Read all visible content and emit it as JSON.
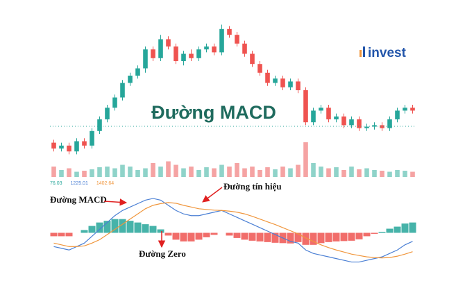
{
  "chart_data": {
    "type": "candlestick",
    "title": "Đường MACD",
    "watermark": "invest",
    "price": {
      "ylim": [
        0,
        100
      ],
      "open": [
        14,
        10,
        12,
        8,
        15,
        12,
        22,
        30,
        38,
        45,
        55,
        60,
        65,
        78,
        72,
        85,
        80,
        70,
        75,
        72,
        78,
        80,
        76,
        92,
        88,
        82,
        75,
        68,
        62,
        55,
        58,
        52,
        56,
        50,
        28,
        36,
        38,
        30,
        32,
        26,
        30,
        24,
        25,
        26,
        24,
        30,
        36,
        38
      ],
      "high": [
        16,
        14,
        14,
        17,
        17,
        24,
        32,
        40,
        47,
        57,
        62,
        67,
        80,
        80,
        88,
        87,
        82,
        77,
        78,
        80,
        82,
        82,
        95,
        94,
        90,
        84,
        77,
        70,
        64,
        60,
        60,
        58,
        58,
        52,
        38,
        40,
        40,
        34,
        34,
        32,
        32,
        27,
        28,
        28,
        32,
        38,
        40,
        40
      ],
      "low": [
        8,
        8,
        6,
        6,
        10,
        10,
        20,
        28,
        36,
        43,
        53,
        58,
        62,
        70,
        70,
        78,
        68,
        67,
        70,
        70,
        76,
        74,
        74,
        86,
        80,
        73,
        66,
        60,
        53,
        53,
        50,
        50,
        48,
        26,
        26,
        34,
        28,
        28,
        24,
        24,
        22,
        22,
        23,
        22,
        22,
        28,
        34,
        34
      ],
      "close": [
        10,
        12,
        8,
        15,
        12,
        22,
        30,
        38,
        45,
        55,
        60,
        65,
        78,
        72,
        85,
        80,
        70,
        75,
        72,
        78,
        80,
        76,
        92,
        88,
        82,
        75,
        68,
        62,
        55,
        58,
        52,
        56,
        50,
        28,
        36,
        38,
        30,
        32,
        26,
        30,
        24,
        25,
        26,
        24,
        30,
        36,
        38,
        36
      ],
      "up_color": "#26a69a",
      "down_color": "#ef5350"
    },
    "volume": {
      "ylim": [
        0,
        100
      ],
      "up_color": "#8fd3c9",
      "down_color": "#f5a3a3",
      "values": [
        30,
        20,
        25,
        15,
        18,
        22,
        28,
        30,
        25,
        35,
        30,
        20,
        25,
        40,
        30,
        45,
        35,
        25,
        30,
        20,
        28,
        25,
        35,
        30,
        40,
        25,
        30,
        20,
        28,
        22,
        30,
        25,
        35,
        100,
        40,
        30,
        25,
        28,
        20,
        30,
        22,
        25,
        20,
        18,
        15,
        20,
        18,
        15
      ]
    },
    "indicator_values": [
      {
        "value": 76.03,
        "color": "#26a69a"
      },
      {
        "value": 1225.01,
        "color": "#4a7fd4"
      },
      {
        "value": 1402.64,
        "color": "#f0963c"
      }
    ],
    "macd": {
      "ylim": [
        -10,
        11
      ],
      "series": [
        {
          "name": "MACD",
          "color": "#4a7fd4",
          "values": [
            -4,
            -4.5,
            -5,
            -4,
            -3,
            -1,
            1,
            3,
            5,
            6.5,
            7.5,
            8.5,
            9.5,
            10,
            9.5,
            8,
            6.5,
            5.5,
            5,
            5,
            5.5,
            6,
            6.5,
            5.5,
            4.5,
            3.5,
            2.5,
            1.5,
            0.5,
            -0.5,
            -1.5,
            -2.5,
            -3,
            -5,
            -6,
            -6.5,
            -7,
            -7.5,
            -8,
            -8.5,
            -8.5,
            -8,
            -7.5,
            -7,
            -6,
            -5,
            -3.5,
            -2.5
          ]
        },
        {
          "name": "Signal",
          "color": "#f0963c",
          "values": [
            -3,
            -3.5,
            -4,
            -4,
            -3.8,
            -3,
            -2,
            -0.5,
            1,
            2.5,
            4,
            5.5,
            7,
            8,
            8.5,
            8.8,
            8.6,
            8,
            7.5,
            7,
            6.8,
            6.6,
            6.5,
            6.3,
            6,
            5.5,
            4.8,
            4,
            3.2,
            2.4,
            1.5,
            0.6,
            -0.3,
            -1.5,
            -2.5,
            -3.5,
            -4.3,
            -5,
            -5.6,
            -6.2,
            -6.6,
            -7,
            -7.2,
            -7.3,
            -7.2,
            -6.8,
            -6.2,
            -5.5
          ]
        }
      ],
      "histogram": {
        "pos_color": "#26a69a",
        "neg_color": "#ef5350",
        "values": [
          -1,
          -1,
          -1,
          0,
          0.8,
          2,
          3,
          3.5,
          4,
          4,
          3.5,
          3,
          2.5,
          2,
          1,
          -0.8,
          -2,
          -2.5,
          -2.5,
          -2,
          -1.3,
          -0.6,
          0,
          -0.8,
          -1.5,
          -2,
          -2.3,
          -2.5,
          -2.7,
          -2.9,
          -3,
          -3.1,
          -2.7,
          -3.5,
          -3.5,
          -3,
          -2.7,
          -2.5,
          -2.4,
          -2.3,
          -1.9,
          -1,
          -0.3,
          0.3,
          1.2,
          1.8,
          2.7,
          3
        ]
      }
    },
    "annotations": [
      "Đường MACD",
      "Đường tín hiệu",
      "Đường Zero"
    ]
  }
}
